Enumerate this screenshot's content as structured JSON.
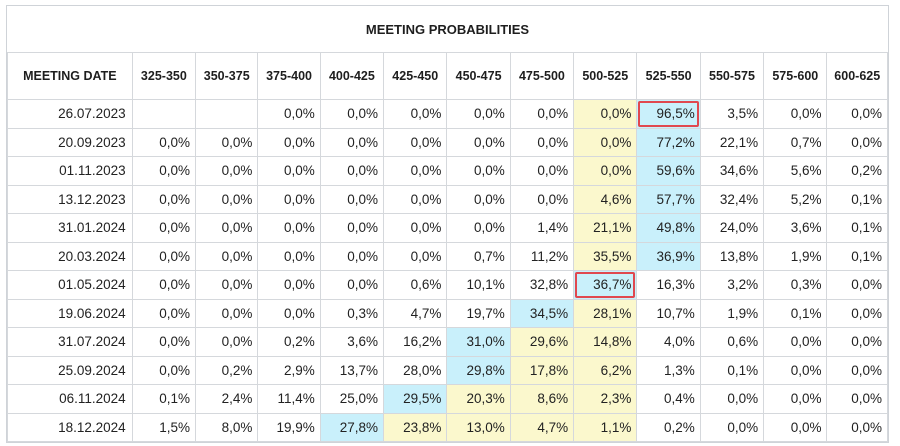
{
  "title": "MEETING PROBABILITIES",
  "headers": [
    "MEETING DATE",
    "325-350",
    "350-375",
    "375-400",
    "400-425",
    "425-450",
    "450-475",
    "475-500",
    "500-525",
    "525-550",
    "550-575",
    "575-600",
    "600-625"
  ],
  "rows": [
    {
      "date": "26.07.2023",
      "cells": [
        {
          "v": ""
        },
        {
          "v": ""
        },
        {
          "v": "0,0%"
        },
        {
          "v": "0,0%"
        },
        {
          "v": "0,0%"
        },
        {
          "v": "0,0%"
        },
        {
          "v": "0,0%"
        },
        {
          "v": "0,0%",
          "bg": "yellow"
        },
        {
          "v": "96,5%",
          "bg": "blue",
          "hl": true
        },
        {
          "v": "3,5%"
        },
        {
          "v": "0,0%"
        },
        {
          "v": "0,0%"
        }
      ]
    },
    {
      "date": "20.09.2023",
      "cells": [
        {
          "v": "0,0%"
        },
        {
          "v": "0,0%"
        },
        {
          "v": "0,0%"
        },
        {
          "v": "0,0%"
        },
        {
          "v": "0,0%"
        },
        {
          "v": "0,0%"
        },
        {
          "v": "0,0%"
        },
        {
          "v": "0,0%",
          "bg": "yellow"
        },
        {
          "v": "77,2%",
          "bg": "blue"
        },
        {
          "v": "22,1%"
        },
        {
          "v": "0,7%"
        },
        {
          "v": "0,0%"
        }
      ]
    },
    {
      "date": "01.11.2023",
      "cells": [
        {
          "v": "0,0%"
        },
        {
          "v": "0,0%"
        },
        {
          "v": "0,0%"
        },
        {
          "v": "0,0%"
        },
        {
          "v": "0,0%"
        },
        {
          "v": "0,0%"
        },
        {
          "v": "0,0%"
        },
        {
          "v": "0,0%",
          "bg": "yellow"
        },
        {
          "v": "59,6%",
          "bg": "blue"
        },
        {
          "v": "34,6%"
        },
        {
          "v": "5,6%"
        },
        {
          "v": "0,2%"
        }
      ]
    },
    {
      "date": "13.12.2023",
      "cells": [
        {
          "v": "0,0%"
        },
        {
          "v": "0,0%"
        },
        {
          "v": "0,0%"
        },
        {
          "v": "0,0%"
        },
        {
          "v": "0,0%"
        },
        {
          "v": "0,0%"
        },
        {
          "v": "0,0%"
        },
        {
          "v": "4,6%",
          "bg": "yellow"
        },
        {
          "v": "57,7%",
          "bg": "blue"
        },
        {
          "v": "32,4%"
        },
        {
          "v": "5,2%"
        },
        {
          "v": "0,1%"
        }
      ]
    },
    {
      "date": "31.01.2024",
      "cells": [
        {
          "v": "0,0%"
        },
        {
          "v": "0,0%"
        },
        {
          "v": "0,0%"
        },
        {
          "v": "0,0%"
        },
        {
          "v": "0,0%"
        },
        {
          "v": "0,0%"
        },
        {
          "v": "1,4%"
        },
        {
          "v": "21,1%",
          "bg": "yellow"
        },
        {
          "v": "49,8%",
          "bg": "blue"
        },
        {
          "v": "24,0%"
        },
        {
          "v": "3,6%"
        },
        {
          "v": "0,1%"
        }
      ]
    },
    {
      "date": "20.03.2024",
      "cells": [
        {
          "v": "0,0%"
        },
        {
          "v": "0,0%"
        },
        {
          "v": "0,0%"
        },
        {
          "v": "0,0%"
        },
        {
          "v": "0,0%"
        },
        {
          "v": "0,7%"
        },
        {
          "v": "11,2%"
        },
        {
          "v": "35,5%",
          "bg": "yellow"
        },
        {
          "v": "36,9%",
          "bg": "blue"
        },
        {
          "v": "13,8%"
        },
        {
          "v": "1,9%"
        },
        {
          "v": "0,1%"
        }
      ]
    },
    {
      "date": "01.05.2024",
      "cells": [
        {
          "v": "0,0%"
        },
        {
          "v": "0,0%"
        },
        {
          "v": "0,0%"
        },
        {
          "v": "0,0%"
        },
        {
          "v": "0,6%"
        },
        {
          "v": "10,1%"
        },
        {
          "v": "32,8%"
        },
        {
          "v": "36,7%",
          "bg": "blue",
          "hl": true
        },
        {
          "v": "16,3%"
        },
        {
          "v": "3,2%"
        },
        {
          "v": "0,3%"
        },
        {
          "v": "0,0%"
        }
      ]
    },
    {
      "date": "19.06.2024",
      "cells": [
        {
          "v": "0,0%"
        },
        {
          "v": "0,0%"
        },
        {
          "v": "0,0%"
        },
        {
          "v": "0,3%"
        },
        {
          "v": "4,7%"
        },
        {
          "v": "19,7%"
        },
        {
          "v": "34,5%",
          "bg": "blue"
        },
        {
          "v": "28,1%",
          "bg": "yellow"
        },
        {
          "v": "10,7%"
        },
        {
          "v": "1,9%"
        },
        {
          "v": "0,1%"
        },
        {
          "v": "0,0%"
        }
      ]
    },
    {
      "date": "31.07.2024",
      "cells": [
        {
          "v": "0,0%"
        },
        {
          "v": "0,0%"
        },
        {
          "v": "0,2%"
        },
        {
          "v": "3,6%"
        },
        {
          "v": "16,2%"
        },
        {
          "v": "31,0%",
          "bg": "blue"
        },
        {
          "v": "29,6%",
          "bg": "yellow"
        },
        {
          "v": "14,8%",
          "bg": "yellow"
        },
        {
          "v": "4,0%"
        },
        {
          "v": "0,6%"
        },
        {
          "v": "0,0%"
        },
        {
          "v": "0,0%"
        }
      ]
    },
    {
      "date": "25.09.2024",
      "cells": [
        {
          "v": "0,0%"
        },
        {
          "v": "0,2%"
        },
        {
          "v": "2,9%"
        },
        {
          "v": "13,7%"
        },
        {
          "v": "28,0%"
        },
        {
          "v": "29,8%",
          "bg": "blue"
        },
        {
          "v": "17,8%",
          "bg": "yellow"
        },
        {
          "v": "6,2%",
          "bg": "yellow"
        },
        {
          "v": "1,3%"
        },
        {
          "v": "0,1%"
        },
        {
          "v": "0,0%"
        },
        {
          "v": "0,0%"
        }
      ]
    },
    {
      "date": "06.11.2024",
      "cells": [
        {
          "v": "0,1%"
        },
        {
          "v": "2,4%"
        },
        {
          "v": "11,4%"
        },
        {
          "v": "25,0%"
        },
        {
          "v": "29,5%",
          "bg": "blue"
        },
        {
          "v": "20,3%",
          "bg": "yellow"
        },
        {
          "v": "8,6%",
          "bg": "yellow"
        },
        {
          "v": "2,3%",
          "bg": "yellow"
        },
        {
          "v": "0,4%"
        },
        {
          "v": "0,0%"
        },
        {
          "v": "0,0%"
        },
        {
          "v": "0,0%"
        }
      ]
    },
    {
      "date": "18.12.2024",
      "cells": [
        {
          "v": "1,5%"
        },
        {
          "v": "8,0%"
        },
        {
          "v": "19,9%"
        },
        {
          "v": "27,8%",
          "bg": "blue"
        },
        {
          "v": "23,8%",
          "bg": "yellow"
        },
        {
          "v": "13,0%",
          "bg": "yellow"
        },
        {
          "v": "4,7%",
          "bg": "yellow"
        },
        {
          "v": "1,1%",
          "bg": "yellow"
        },
        {
          "v": "0,2%"
        },
        {
          "v": "0,0%"
        },
        {
          "v": "0,0%"
        },
        {
          "v": "0,0%"
        }
      ]
    }
  ],
  "colors": {
    "yellow": "#fbf8cd",
    "blue": "#c9f0fb",
    "highlight": "#e0484f"
  }
}
